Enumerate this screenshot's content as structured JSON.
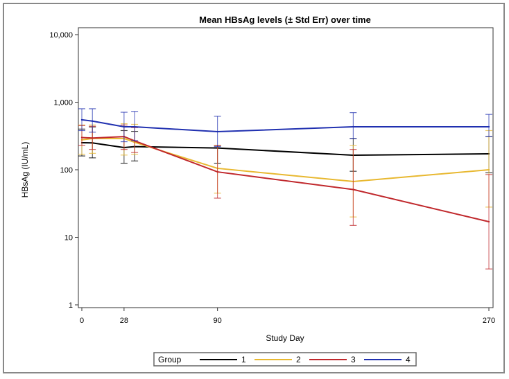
{
  "chart_data": {
    "type": "line",
    "title": "Mean HBsAg levels (± Std Err) over time",
    "xlabel": "Study Day",
    "ylabel": "HBsAg (IU/mL)",
    "xlim": [
      0,
      270
    ],
    "ylim": [
      1,
      10000
    ],
    "yscale": "log",
    "xticks": [
      0,
      28,
      90,
      270
    ],
    "xtick_labels": [
      "0",
      "28",
      "90",
      "270"
    ],
    "yticks": [
      1,
      10,
      100,
      1000,
      10000
    ],
    "ytick_labels": [
      "1",
      "10",
      "100",
      "1,000",
      "10,000"
    ],
    "grid": false,
    "legend": {
      "title": "Group",
      "placement": "bottom"
    },
    "x": [
      0,
      7,
      28,
      35,
      90,
      180,
      270
    ],
    "series": [
      {
        "name": "1",
        "color": "#000000",
        "values": [
          251,
          250,
          213,
          220,
          210,
          164,
          172
        ],
        "lower": [
          160,
          150,
          125,
          135,
          125,
          95,
          90
        ],
        "upper": [
          400,
          430,
          380,
          370,
          230,
          290,
          310
        ]
      },
      {
        "name": "2",
        "color": "#e8b830",
        "values": [
          277,
          290,
          290,
          255,
          105,
          67,
          100
        ],
        "lower": [
          170,
          175,
          165,
          170,
          45,
          20,
          28
        ],
        "upper": [
          460,
          460,
          480,
          470,
          230,
          230,
          380
        ]
      },
      {
        "name": "3",
        "color": "#c0282c",
        "values": [
          300,
          295,
          310,
          268,
          93,
          51,
          17
        ],
        "lower": [
          230,
          200,
          200,
          180,
          38,
          15,
          3.4
        ],
        "upper": [
          450,
          440,
          460,
          420,
          230,
          200,
          85
        ]
      },
      {
        "name": "4",
        "color": "#2030b0",
        "values": [
          549,
          525,
          433,
          433,
          366,
          433,
          433
        ],
        "lower": [
          380,
          360,
          260,
          270,
          220,
          290,
          310
        ],
        "upper": [
          800,
          800,
          710,
          730,
          620,
          700,
          660
        ]
      }
    ]
  }
}
